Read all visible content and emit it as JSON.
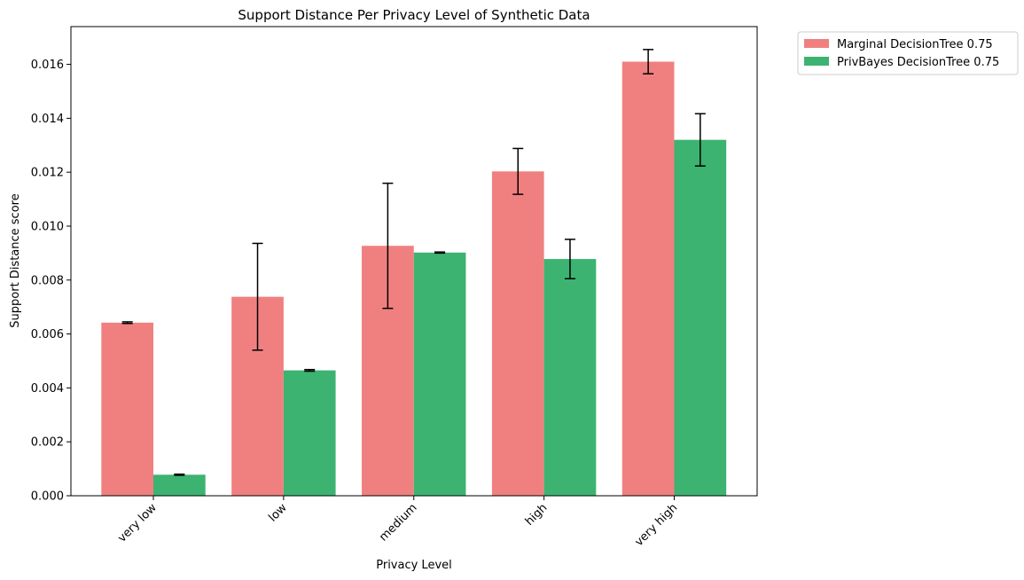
{
  "chart_data": {
    "type": "bar",
    "title": "Support Distance Per Privacy Level of Synthetic Data",
    "xlabel": "Privacy Level",
    "ylabel": "Support Distance score",
    "categories": [
      "very low",
      "low",
      "medium",
      "high",
      "very high"
    ],
    "ylim": [
      0,
      0.0174
    ],
    "yticks": [
      "0.000",
      "0.002",
      "0.004",
      "0.006",
      "0.008",
      "0.010",
      "0.012",
      "0.014",
      "0.016"
    ],
    "grid": false,
    "legend_position": "outside-top-right",
    "series": [
      {
        "name": "Marginal DecisionTree 0.75",
        "color": "#f08080",
        "values": [
          0.00642,
          0.00738,
          0.00927,
          0.01203,
          0.0161
        ],
        "errors": [
          3e-05,
          0.00198,
          0.00232,
          0.00085,
          0.00045
        ]
      },
      {
        "name": "PrivBayes DecisionTree 0.75",
        "color": "#3cb371",
        "values": [
          0.00078,
          0.00465,
          0.00902,
          0.00878,
          0.0132
        ],
        "errors": [
          2e-05,
          3e-05,
          2e-05,
          0.00073,
          0.00097
        ]
      }
    ]
  }
}
